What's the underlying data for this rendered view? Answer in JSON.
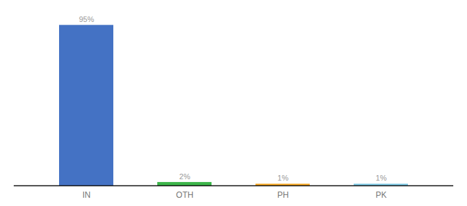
{
  "chart_data": {
    "type": "bar",
    "categories": [
      "IN",
      "OTH",
      "PH",
      "PK"
    ],
    "values": [
      95,
      2,
      1,
      1
    ],
    "value_labels": [
      "95%",
      "2%",
      "1%",
      "1%"
    ],
    "colors": [
      "#4472C4",
      "#3CB54A",
      "#F5A623",
      "#7EC8E3"
    ],
    "data_labels": true,
    "ylim": [
      0,
      100
    ],
    "tick_labels": "x",
    "grid": false
  }
}
